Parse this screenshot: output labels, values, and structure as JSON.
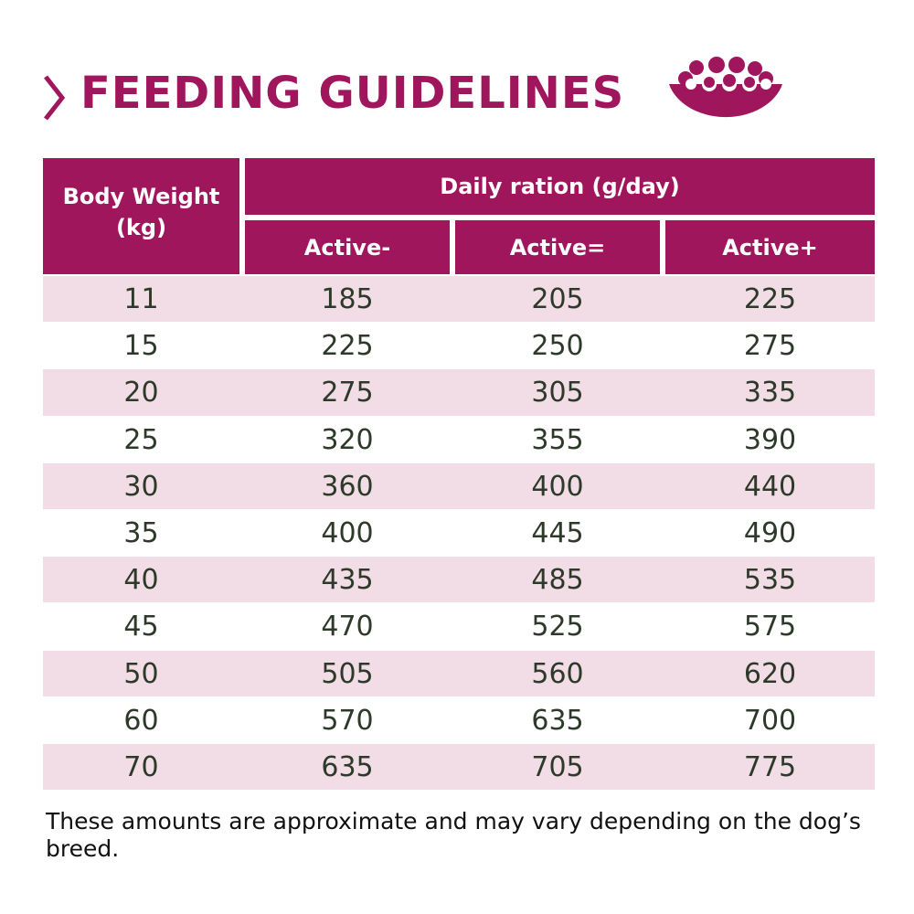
{
  "header": {
    "title": "FEEDING GUIDELINES"
  },
  "table": {
    "first_column_header": "Body Weight (kg)",
    "group_header": "Daily ration (g/day)",
    "columns": [
      "Active-",
      "Active=",
      "Active+"
    ],
    "rows": [
      [
        11,
        185,
        205,
        225
      ],
      [
        15,
        225,
        250,
        275
      ],
      [
        20,
        275,
        305,
        335
      ],
      [
        25,
        320,
        355,
        390
      ],
      [
        30,
        360,
        400,
        440
      ],
      [
        35,
        400,
        445,
        490
      ],
      [
        40,
        435,
        485,
        535
      ],
      [
        45,
        470,
        525,
        575
      ],
      [
        50,
        505,
        560,
        620
      ],
      [
        60,
        570,
        635,
        700
      ],
      [
        70,
        635,
        705,
        775
      ]
    ]
  },
  "footnote": "These amounts are approximate and may vary depending on the dog’s breed."
}
